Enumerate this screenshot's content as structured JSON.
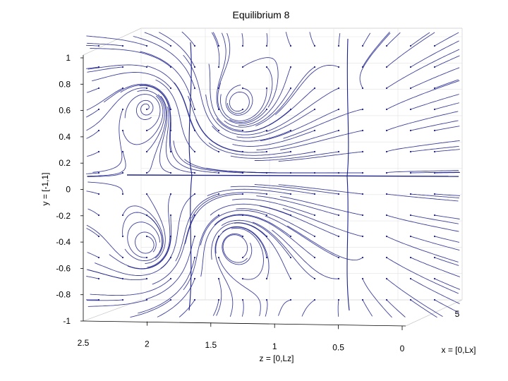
{
  "chart_data": {
    "type": "streamline",
    "title": "Equilibrium 8",
    "ylabel": "y = [-1,1]",
    "zlabel": "z = [0,Lz]",
    "xlabel": "x = [0,Lx]",
    "y_ticks": [
      "1",
      "0.8",
      "0.6",
      "0.4",
      "0.2",
      "0",
      "-0.2",
      "-0.4",
      "-0.6",
      "-0.8",
      "-1"
    ],
    "z_ticks": [
      "2.5",
      "2",
      "1.5",
      "1",
      "0.5",
      "0"
    ],
    "x_ticks": [
      "5"
    ],
    "ylim": [
      -1,
      1
    ],
    "zlim": [
      0,
      2.5
    ],
    "grid": true,
    "stream_color": "#1b1f8a"
  }
}
